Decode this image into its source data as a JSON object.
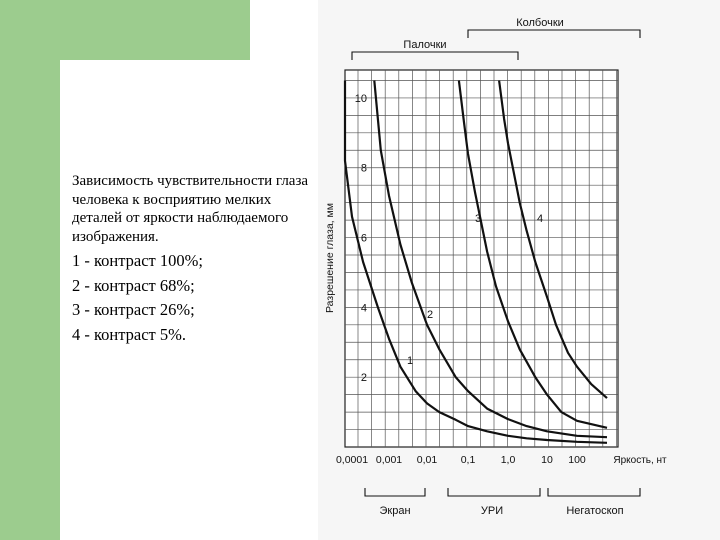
{
  "caption": {
    "title": "Зависимость чувствительности глаза человека к восприятию мелких деталей от яркости наблюдаемого изображения.",
    "legend": [
      "1 - контраст 100%;",
      "2 - контраст 68%;",
      "3 - контраст 26%;",
      "4 - контраст 5%."
    ]
  },
  "chart_data": {
    "type": "line",
    "ylabel": "Разрешение глаза, мм",
    "xlabel": "Яркость, нт",
    "x_scale": "log",
    "x_ticks": [
      "0,0001",
      "0,001",
      "0,01",
      "0,1",
      "1,0",
      "10",
      "100"
    ],
    "x_tick_values": [
      0.0001,
      0.001,
      0.01,
      0.1,
      1,
      10,
      100
    ],
    "y_ticks": [
      "2",
      "4",
      "6",
      "8",
      "10"
    ],
    "y_tick_values": [
      2,
      4,
      6,
      8,
      10
    ],
    "ylim": [
      0,
      10.8
    ],
    "grid": true,
    "top_regions": [
      "Палочки",
      "Колбочки"
    ],
    "bottom_regions": [
      "Экран",
      "УРИ",
      "Негатоскоп"
    ],
    "series": [
      {
        "name": "1",
        "x": [
          3e-05,
          5e-05,
          0.0001,
          0.0002,
          0.0005,
          0.001,
          0.002,
          0.005,
          0.01,
          0.02,
          0.05,
          0.1,
          0.3,
          1,
          3,
          10,
          100,
          1000
        ],
        "y": [
          10.5,
          8.2,
          6.6,
          5.3,
          4.0,
          3.1,
          2.3,
          1.6,
          1.25,
          1.0,
          0.78,
          0.6,
          0.45,
          0.32,
          0.25,
          0.2,
          0.15,
          0.12
        ]
      },
      {
        "name": "2",
        "x": [
          0.0004,
          0.0006,
          0.001,
          0.002,
          0.004,
          0.01,
          0.02,
          0.05,
          0.1,
          0.3,
          1,
          3,
          10,
          100,
          1000
        ],
        "y": [
          10.5,
          8.5,
          7.2,
          5.8,
          4.7,
          3.5,
          2.8,
          2.0,
          1.6,
          1.1,
          0.8,
          0.6,
          0.45,
          0.32,
          0.28
        ]
      },
      {
        "name": "3",
        "x": [
          0.06,
          0.08,
          0.1,
          0.15,
          0.2,
          0.3,
          0.5,
          1,
          2,
          5,
          10,
          30,
          100,
          1000
        ],
        "y": [
          10.5,
          9.3,
          8.4,
          7.3,
          6.6,
          5.6,
          4.6,
          3.6,
          2.8,
          2.0,
          1.5,
          1.0,
          0.75,
          0.55
        ]
      },
      {
        "name": "4",
        "x": [
          0.6,
          0.8,
          1,
          1.5,
          2,
          3,
          5,
          10,
          20,
          50,
          100,
          300,
          1000
        ],
        "y": [
          10.5,
          9.4,
          8.7,
          7.7,
          7.0,
          6.2,
          5.3,
          4.3,
          3.5,
          2.7,
          2.3,
          1.8,
          1.4
        ]
      }
    ]
  }
}
